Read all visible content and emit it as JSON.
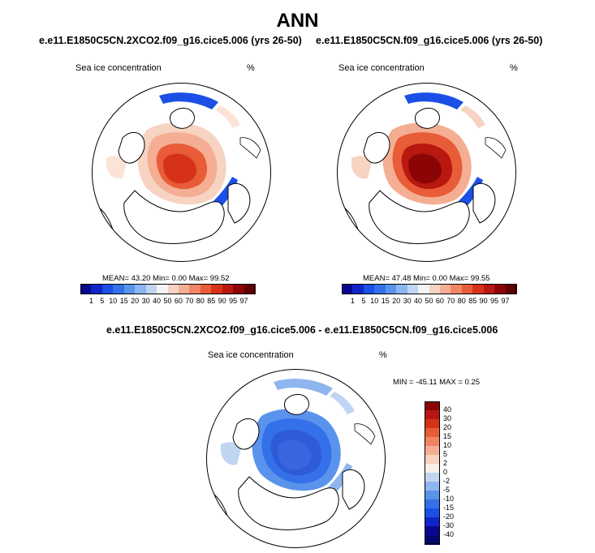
{
  "title": "ANN",
  "panels": [
    {
      "case": "e.e11.E1850C5CN.2XCO2.f09_g16.cice5.006 (yrs 26-50)",
      "variable": "Sea ice concentration",
      "unit": "%",
      "stats": "MEAN=  43.20  Min=   0.00  Max=  99.52"
    },
    {
      "case": "e.e11.E1850C5CN.f09_g16.cice5.006 (yrs 26-50)",
      "variable": "Sea ice concentration",
      "unit": "%",
      "stats": "MEAN=  47.48  Min=   0.00  Max=  99.55"
    }
  ],
  "diff": {
    "case": "e.e11.E1850C5CN.2XCO2.f09_g16.cice5.006 - e.e11.E1850C5CN.f09_g16.cice5.006",
    "variable": "Sea ice concentration",
    "unit": "%",
    "stats": "MIN = -45.11 MAX =    0.25"
  },
  "colorbar_levels": [
    "1",
    "5",
    "10",
    "15",
    "20",
    "30",
    "40",
    "50",
    "60",
    "70",
    "80",
    "85",
    "90",
    "95",
    "97"
  ],
  "colorbar_colors": [
    "#08088f",
    "#1025c8",
    "#1b4fe6",
    "#3370ea",
    "#5a93ec",
    "#8db5ef",
    "#bfd6f3",
    "#f5f5f5",
    "#f7d3c2",
    "#f4ae93",
    "#ef8663",
    "#e85c37",
    "#d6321a",
    "#b81810",
    "#8c0505",
    "#5e0000"
  ],
  "diff_levels": [
    "40",
    "30",
    "20",
    "15",
    "10",
    "5",
    "2",
    "0",
    "-2",
    "-5",
    "-10",
    "-15",
    "-20",
    "-30",
    "-40"
  ],
  "diff_colors": [
    "#8c0505",
    "#b51810",
    "#d6321a",
    "#e85c37",
    "#ef8663",
    "#f4ae93",
    "#f7d3c2",
    "#f5f0ea",
    "#bfd6f3",
    "#8db5ef",
    "#5a93ec",
    "#3370ea",
    "#1b4fe6",
    "#1025c8",
    "#08088f",
    "#060670"
  ]
}
